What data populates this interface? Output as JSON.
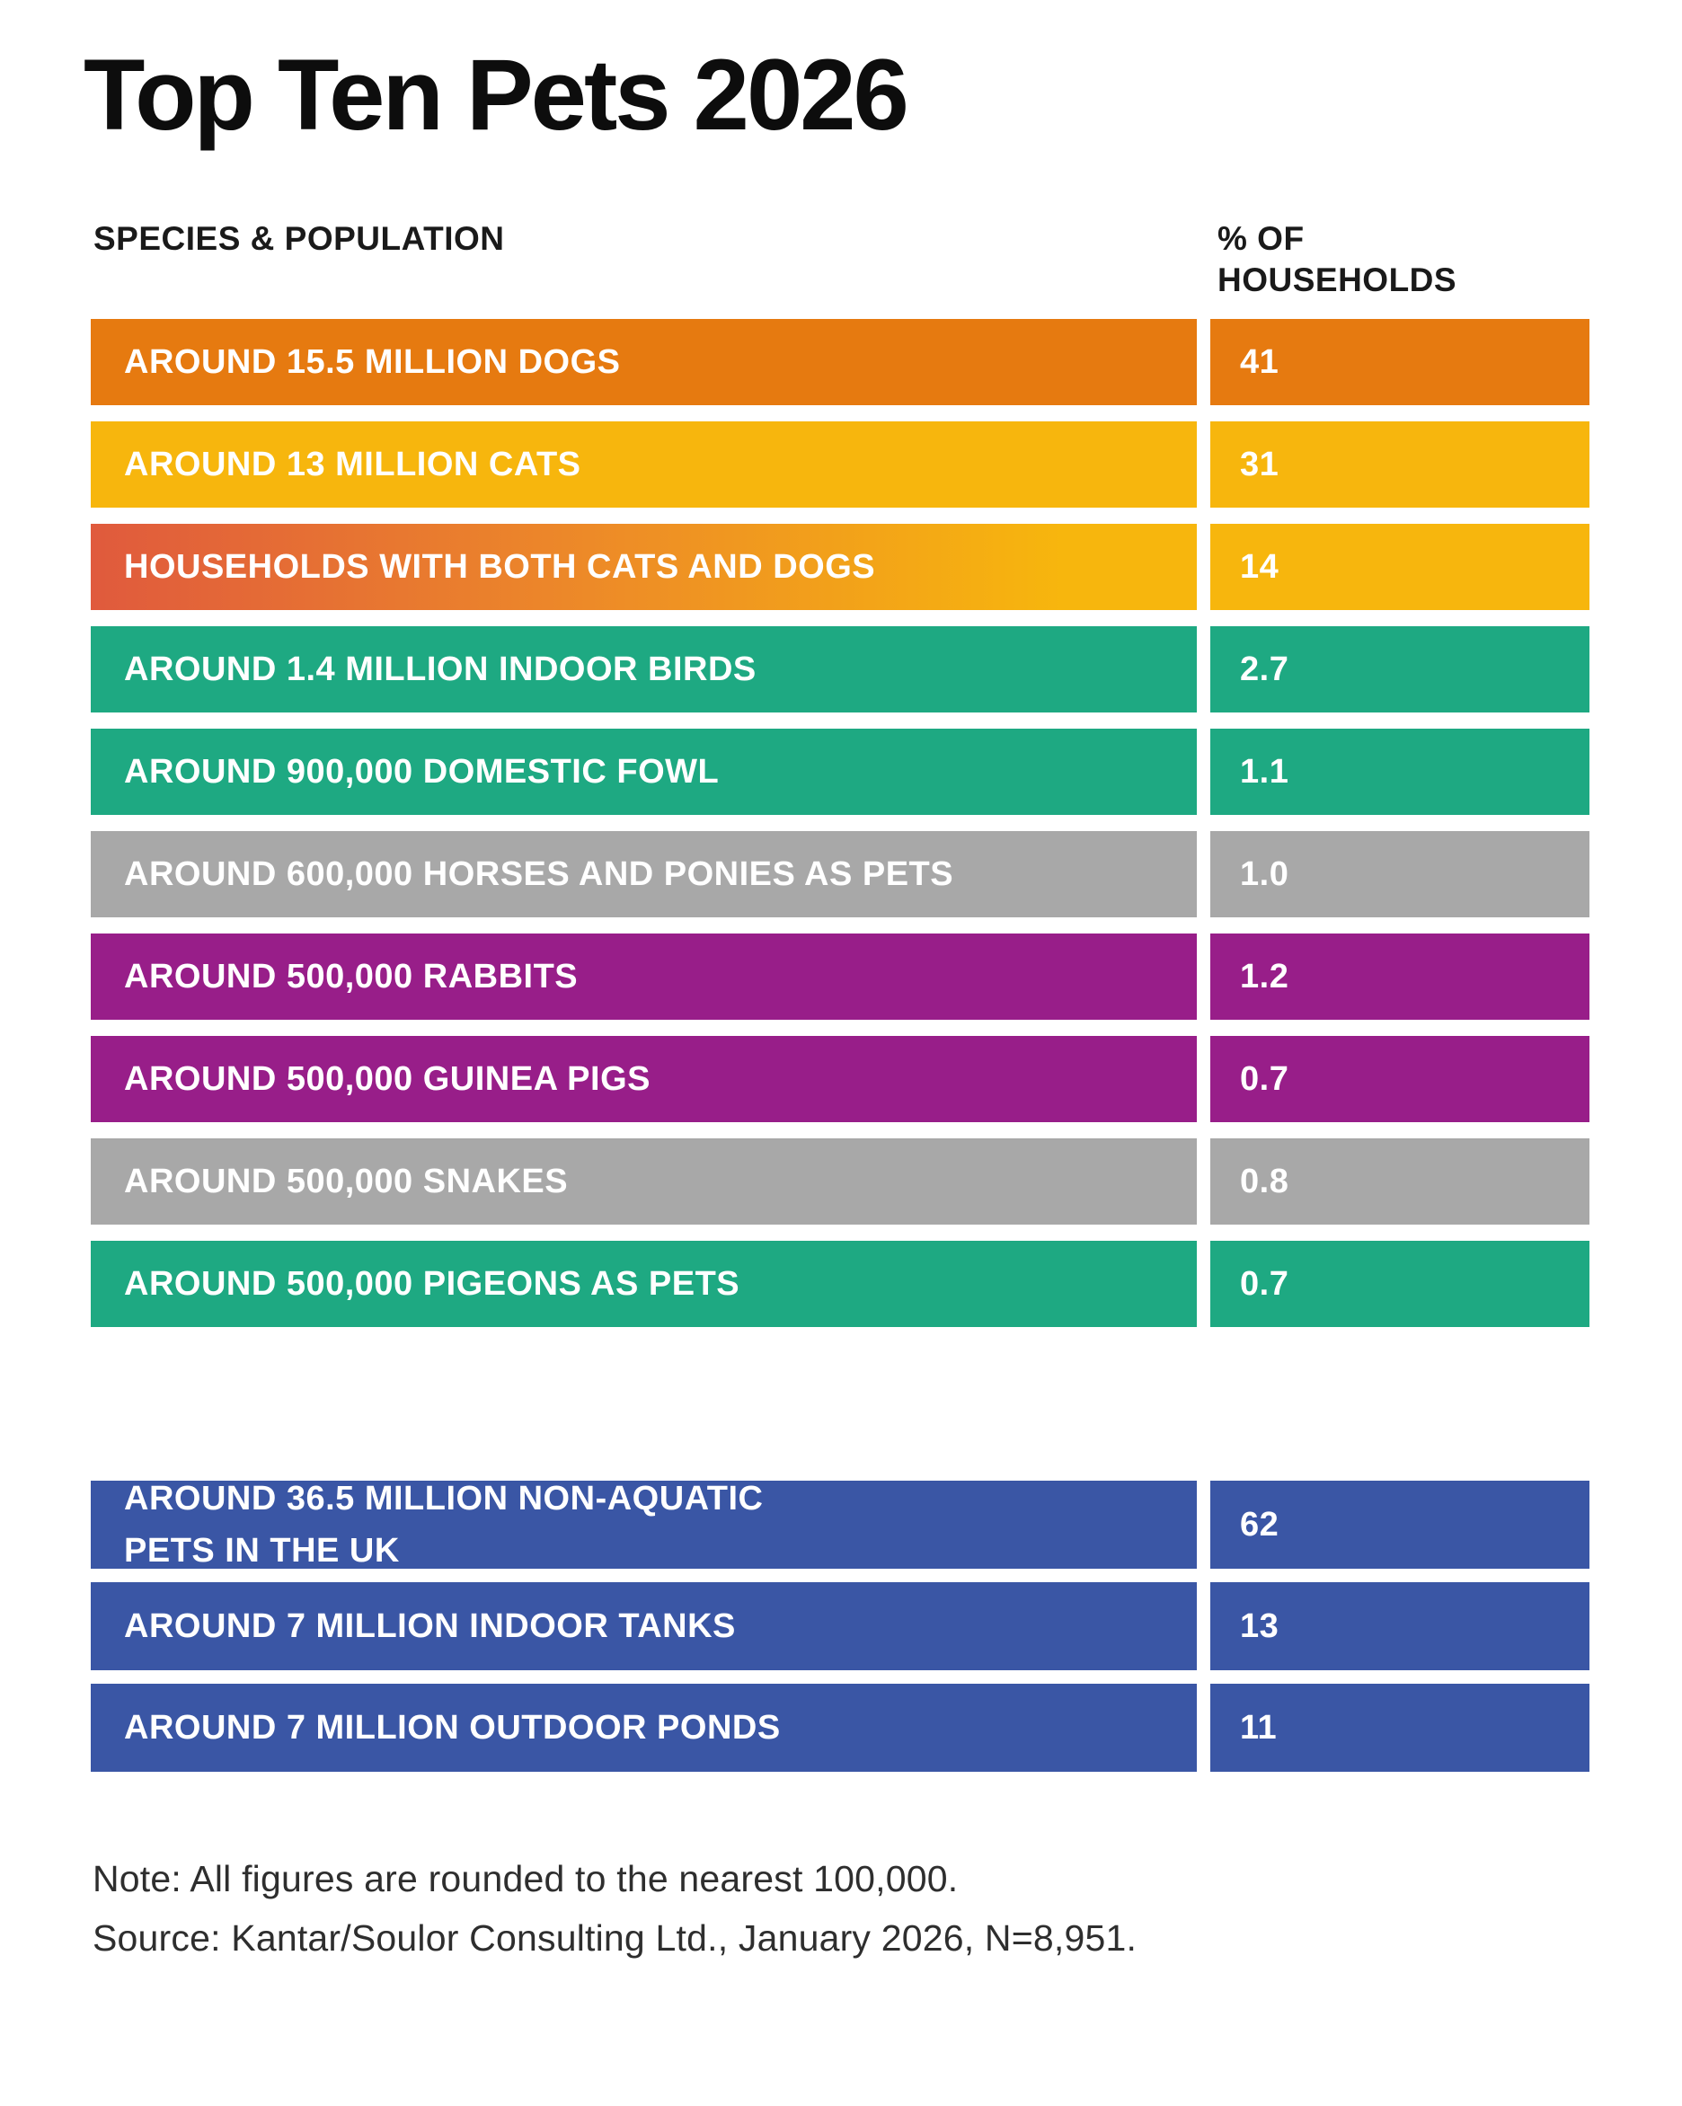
{
  "title": "Top Ten Pets 2026",
  "header": {
    "col1": "SPECIES & POPULATION",
    "col2": "% OF\nHOUSEHOLDS"
  },
  "colors": {
    "orange": "#E67A10",
    "yellow": "#F7B60D",
    "green": "#1EA982",
    "gray": "#A8A8A8",
    "purple": "#981E89",
    "blue": "#3A56A5",
    "cats_dogs_gradient": {
      "type": "gradient",
      "stops": [
        "#E05A3D",
        "#ED8A28",
        "#F7B60D"
      ]
    }
  },
  "chart_data": {
    "type": "table",
    "title": "Top Ten Pets 2026",
    "columns": [
      "SPECIES & POPULATION",
      "% OF HOUSEHOLDS"
    ],
    "species_rows": [
      {
        "label": "AROUND 15.5 MILLION DOGS",
        "value": "41",
        "color_key": "orange"
      },
      {
        "label": "AROUND 13 MILLION CATS",
        "value": "31",
        "color_key": "yellow"
      },
      {
        "label": "HOUSEHOLDS WITH BOTH CATS AND DOGS",
        "value": "14",
        "color_key": "cats_dogs_gradient",
        "value_color_key": "yellow"
      },
      {
        "label": "AROUND 1.4 MILLION INDOOR BIRDS",
        "value": "2.7",
        "color_key": "green"
      },
      {
        "label": "AROUND 900,000 DOMESTIC FOWL",
        "value": "1.1",
        "color_key": "green"
      },
      {
        "label": "AROUND 600,000 HORSES AND PONIES AS PETS",
        "value": "1.0",
        "color_key": "gray"
      },
      {
        "label": "AROUND 500,000 RABBITS",
        "value": "1.2",
        "color_key": "purple"
      },
      {
        "label": "AROUND 500,000 GUINEA PIGS",
        "value": "0.7",
        "color_key": "purple"
      },
      {
        "label": "AROUND 500,000 SNAKES",
        "value": "0.8",
        "color_key": "gray"
      },
      {
        "label": "AROUND 500,000 PIGEONS AS PETS",
        "value": "0.7",
        "color_key": "green"
      }
    ],
    "aquatic_rows": [
      {
        "label": "AROUND 36.5 MILLION NON-AQUATIC\nPETS IN THE UK",
        "value": "62",
        "color_key": "blue",
        "two_line": true
      },
      {
        "label": "AROUND 7 MILLION INDOOR TANKS",
        "value": "13",
        "color_key": "blue"
      },
      {
        "label": "AROUND 7 MILLION OUTDOOR PONDS",
        "value": "11",
        "color_key": "blue"
      }
    ]
  },
  "footer": {
    "note": "Note: All figures are rounded to the nearest 100,000.",
    "source": "Source: Kantar/Soulor Consulting Ltd., January 2026, N=8,951."
  }
}
